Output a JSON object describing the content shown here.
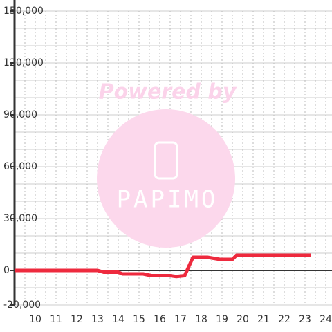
{
  "chart_data": {
    "type": "line",
    "x": [
      9,
      13,
      13.3,
      14,
      14.2,
      15.2,
      15.6,
      16.5,
      16.8,
      17.2,
      17.6,
      18.3,
      18.9,
      19.5,
      19.7,
      20,
      23.3
    ],
    "values": [
      0,
      0,
      -1000,
      -1000,
      -2000,
      -2000,
      -3000,
      -3000,
      -3500,
      -3000,
      7600,
      7600,
      6400,
      6400,
      8800,
      8800,
      8800
    ],
    "color": "#ee2a3e",
    "xlim": [
      9,
      24.3
    ],
    "xticks": [
      10,
      11,
      12,
      13,
      14,
      15,
      16,
      17,
      18,
      19,
      20,
      21,
      22,
      23,
      24
    ],
    "xgrid": [
      9.5,
      10,
      10.5,
      11,
      11.5,
      12,
      12.5,
      13,
      13.5,
      14,
      14.5,
      15,
      15.5,
      16,
      16.5,
      17,
      17.5,
      18,
      18.5,
      19,
      19.5,
      20,
      20.5,
      21,
      21.5,
      22,
      22.5,
      23,
      23.5,
      24
    ],
    "ylim": [
      -20000,
      150000
    ],
    "yticks": [
      {
        "value": 150000,
        "label": "150,000"
      },
      {
        "value": 120000,
        "label": "120,000"
      },
      {
        "value": 90000,
        "label": "90,000"
      },
      {
        "value": 60000,
        "label": "60,000"
      },
      {
        "value": 30000,
        "label": "30,000"
      },
      0,
      {
        "value": -20000,
        "label": "-20,000"
      }
    ],
    "ygrid": [
      -10000,
      10000,
      20000,
      40000,
      50000,
      70000,
      80000,
      100000,
      110000,
      130000,
      140000
    ],
    "grid": true
  },
  "watermark": {
    "line1": "Powered by",
    "line2": "PAPIMO"
  }
}
